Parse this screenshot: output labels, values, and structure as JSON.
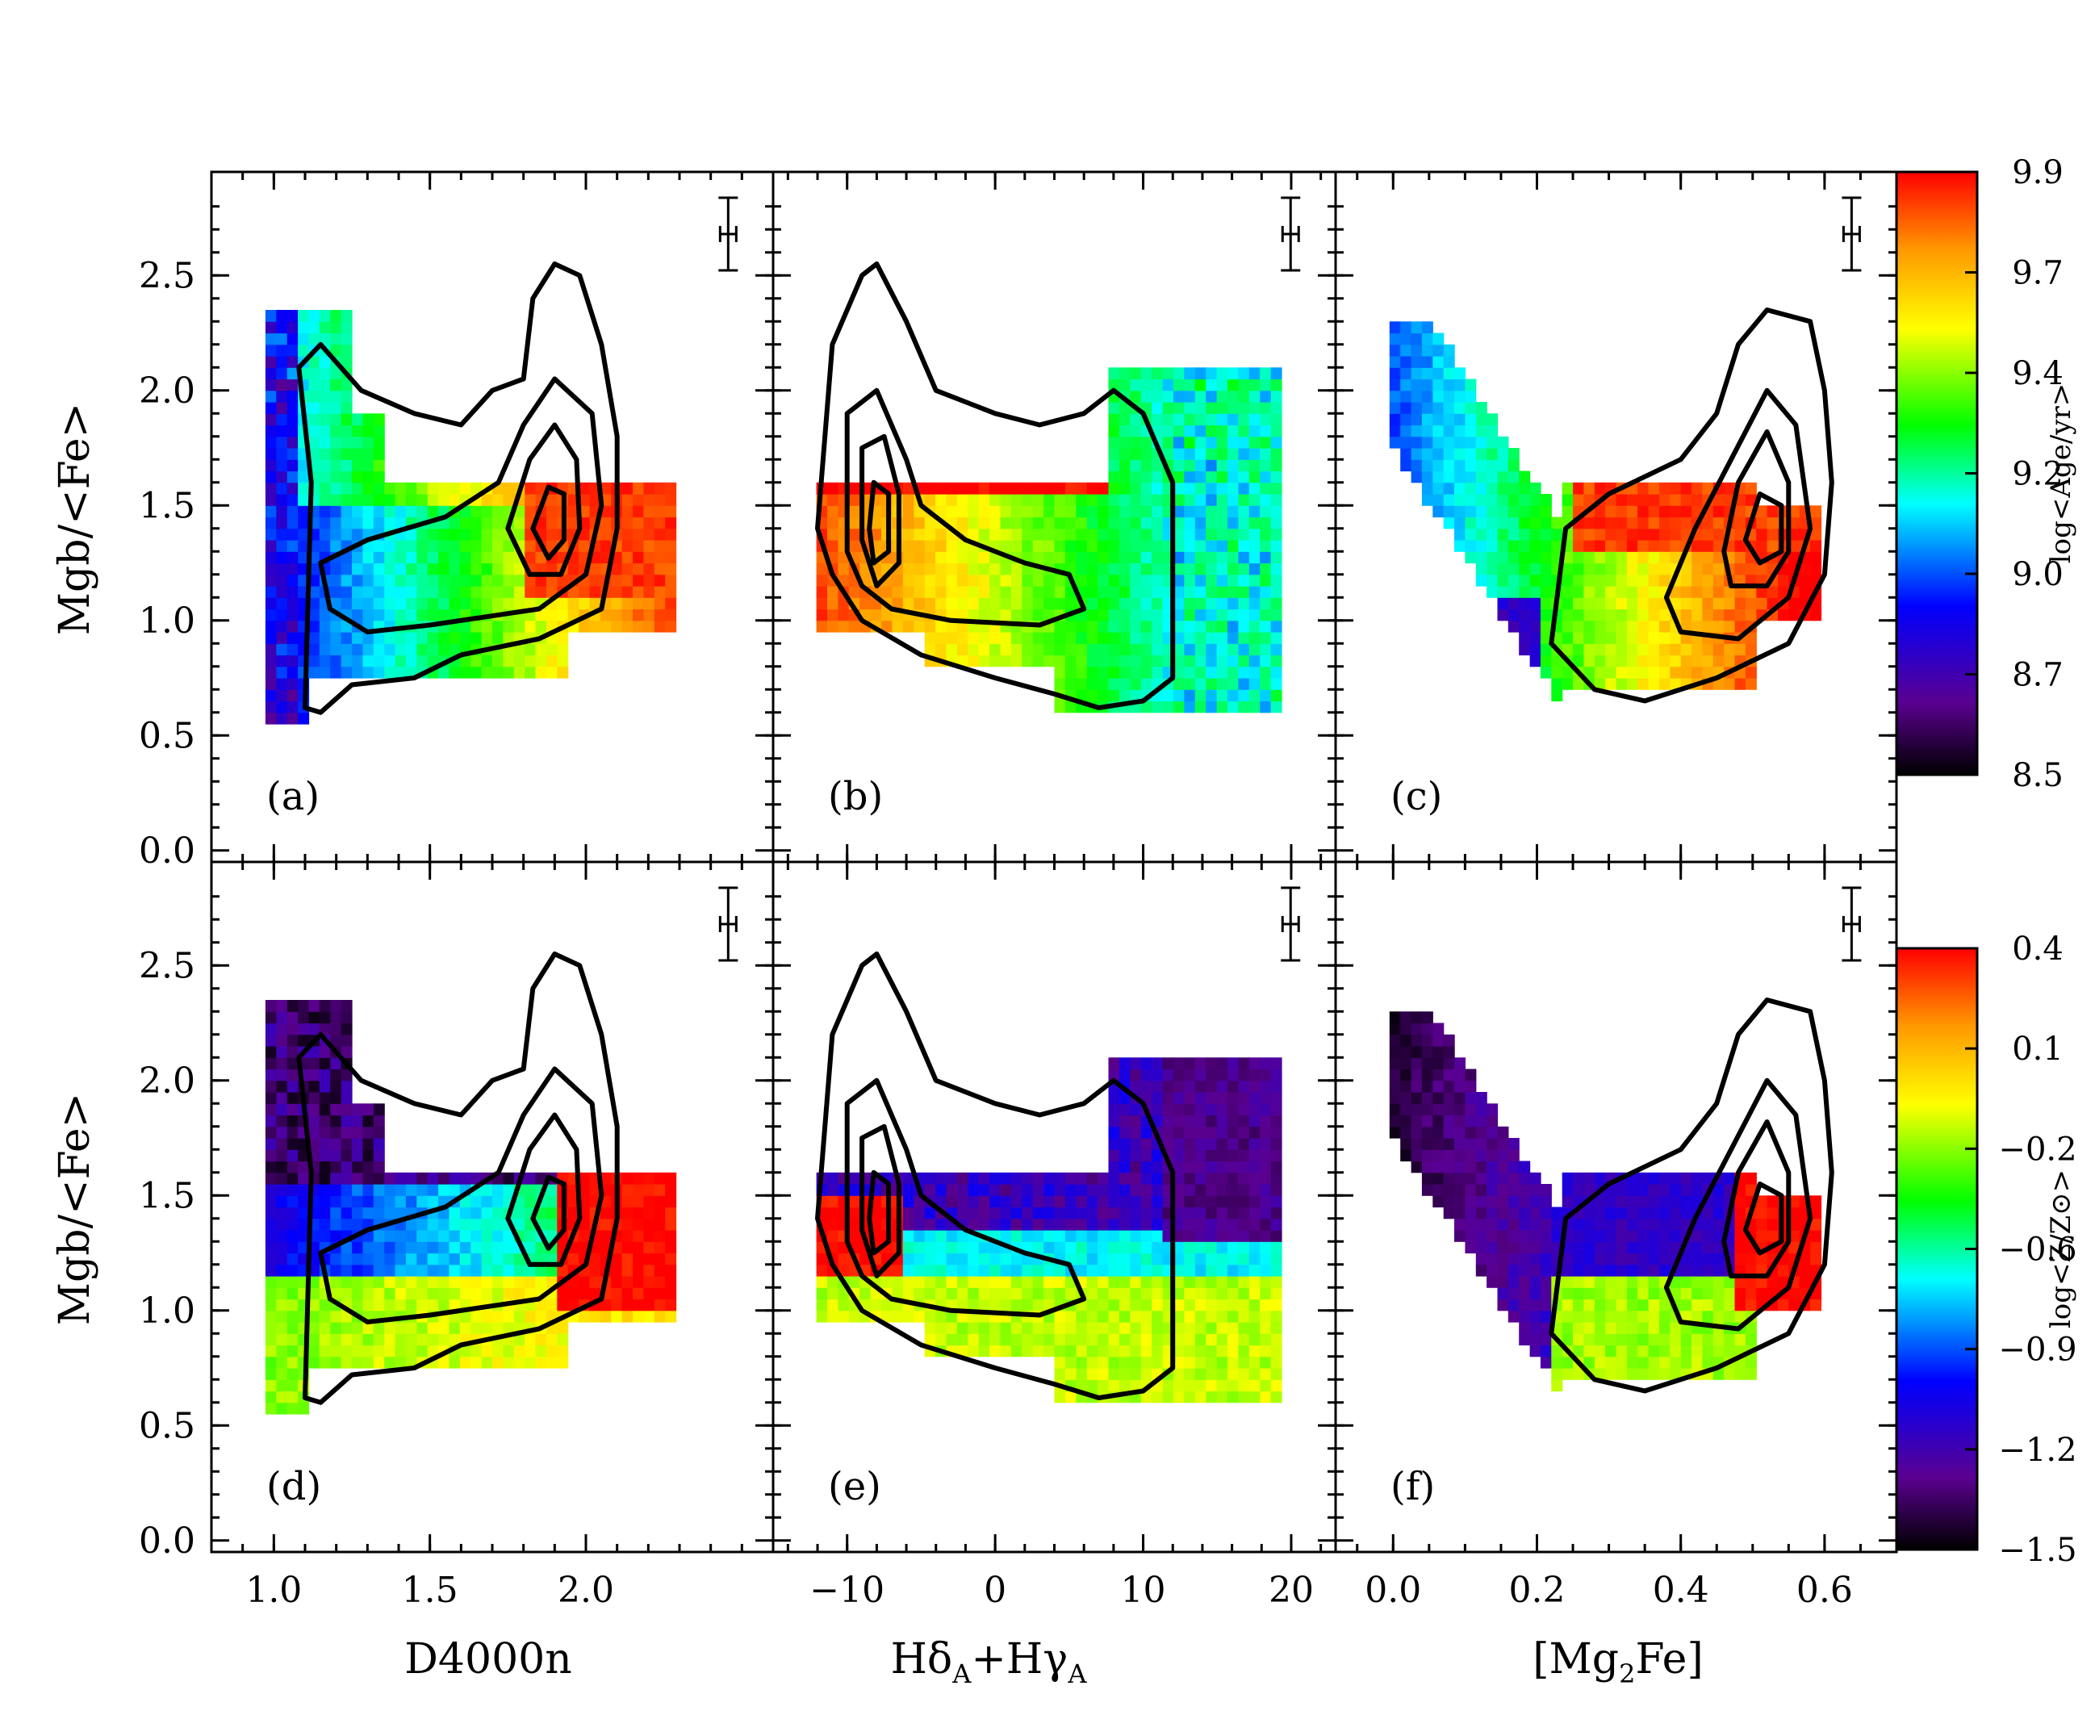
{
  "figure": {
    "background": "#ffffff",
    "ink": "#000000"
  },
  "chart_data": [
    {
      "type": "heatmap",
      "panel_label": "(a)",
      "xlabel": "D4000n",
      "ylabel": "Mgb/<Fe>",
      "xlim": [
        0.8,
        2.6
      ],
      "ylim": [
        -0.05,
        2.95
      ],
      "x_ticks": [
        "1.0",
        "1.5",
        "2.0"
      ],
      "y_ticks": [
        "0.0",
        "0.5",
        "1.0",
        "1.5",
        "2.0",
        "2.5"
      ],
      "colour_quantity": "age",
      "contour_levels": 4
    },
    {
      "type": "heatmap",
      "panel_label": "(b)",
      "xlabel": "HδA+HγA",
      "ylabel": "",
      "xlim": [
        -15,
        23
      ],
      "ylim": [
        -0.05,
        2.95
      ],
      "x_ticks": [
        "−10",
        "0",
        "10",
        "20"
      ],
      "colour_quantity": "age",
      "contour_levels": 4
    },
    {
      "type": "heatmap",
      "panel_label": "(c)",
      "xlabel": "[Mg2Fe]",
      "ylabel": "",
      "xlim": [
        -0.08,
        0.7
      ],
      "ylim": [
        -0.05,
        2.95
      ],
      "x_ticks": [
        "0.0",
        "0.2",
        "0.4",
        "0.6"
      ],
      "colour_quantity": "age",
      "contour_levels": 4
    },
    {
      "type": "heatmap",
      "panel_label": "(d)",
      "xlabel": "D4000n",
      "ylabel": "Mgb/<Fe>",
      "xlim": [
        0.8,
        2.6
      ],
      "ylim": [
        -0.05,
        2.95
      ],
      "x_ticks": [
        "1.0",
        "1.5",
        "2.0"
      ],
      "y_ticks": [
        "0.0",
        "0.5",
        "1.0",
        "1.5",
        "2.0",
        "2.5"
      ],
      "colour_quantity": "metallicity",
      "contour_levels": 4
    },
    {
      "type": "heatmap",
      "panel_label": "(e)",
      "xlabel": "HδA+HγA",
      "ylabel": "",
      "xlim": [
        -15,
        23
      ],
      "ylim": [
        -0.05,
        2.95
      ],
      "x_ticks": [
        "−10",
        "0",
        "10",
        "20"
      ],
      "colour_quantity": "metallicity",
      "contour_levels": 4
    },
    {
      "type": "heatmap",
      "panel_label": "(f)",
      "xlabel": "[Mg2Fe]",
      "ylabel": "",
      "xlim": [
        -0.08,
        0.7
      ],
      "ylim": [
        -0.05,
        2.95
      ],
      "x_ticks": [
        "0.0",
        "0.2",
        "0.4",
        "0.6"
      ],
      "colour_quantity": "metallicity",
      "contour_levels": 4
    }
  ],
  "colorbars": [
    {
      "title": "log<Age/yr>",
      "ticks": [
        "9.9",
        "9.7",
        "9.4",
        "9.2",
        "9.0",
        "8.7",
        "8.5"
      ],
      "range": [
        8.5,
        9.9
      ]
    },
    {
      "title": "log<Z/Z⊙>",
      "ticks": [
        "0.4",
        "0.1",
        "−0.2",
        "−0.6",
        "−0.9",
        "−1.2",
        "−1.5"
      ],
      "range": [
        -1.5,
        0.4
      ]
    }
  ],
  "axis_titles": {
    "x1": "D4000n",
    "x2_main": "Hδ",
    "x2_sub1": "A",
    "x2_mid": "+Hγ",
    "x2_sub2": "A",
    "x3_main": "[Mg",
    "x3_sub": "2",
    "x3_end": "Fe]",
    "y_top": "Mgb/<Fe>",
    "y_bottom": "Mgb/<Fe>"
  }
}
